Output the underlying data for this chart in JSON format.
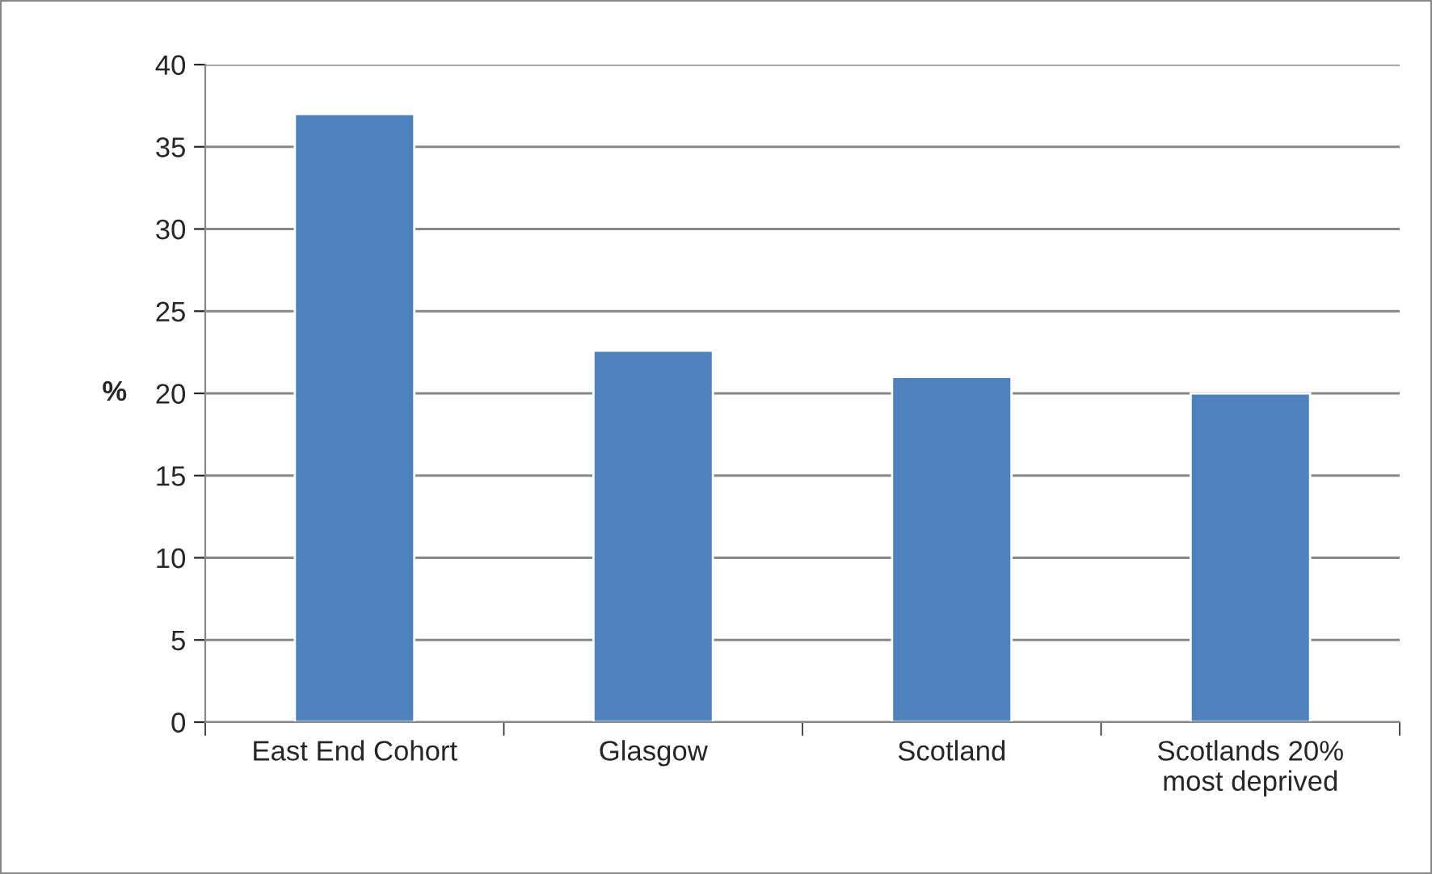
{
  "chart_data": {
    "type": "bar",
    "ylabel": "%",
    "categories": [
      "East End Cohort",
      "Glasgow",
      "Scotland",
      "Scotlands 20%\nmost deprived"
    ],
    "values": [
      37,
      22.6,
      21,
      20
    ],
    "color": "#4f81bd",
    "ylim": [
      0,
      40
    ],
    "yticks": [
      0,
      5,
      10,
      15,
      20,
      25,
      30,
      35,
      40
    ],
    "grid": "y",
    "legend": false
  }
}
